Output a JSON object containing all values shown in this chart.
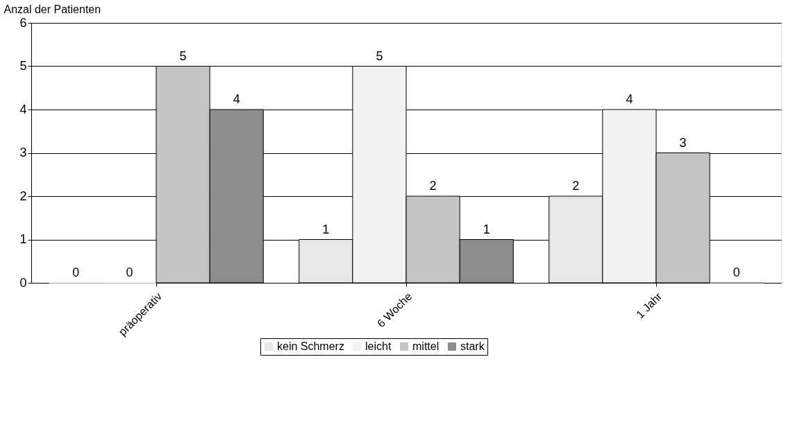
{
  "chart_data": {
    "type": "bar",
    "ylabel": "Anzal der Patienten",
    "categories": [
      "präoperativ",
      "6 Woche",
      "1 Jahr"
    ],
    "series": [
      {
        "name": "kein Schmerz",
        "color": "#e6e6e6",
        "values": [
          0,
          1,
          2
        ]
      },
      {
        "name": "leicht",
        "color": "#f2f2f2",
        "values": [
          0,
          5,
          4
        ]
      },
      {
        "name": "mittel",
        "color": "#c4c4c4",
        "values": [
          5,
          2,
          3
        ]
      },
      {
        "name": "stark",
        "color": "#8c8c8c",
        "values": [
          4,
          1,
          0
        ]
      }
    ],
    "ylim": [
      0,
      6
    ],
    "yticks": [
      0,
      1,
      2,
      3,
      4,
      5,
      6
    ],
    "grid": "y",
    "legend": "bottom",
    "data_labels": true
  }
}
